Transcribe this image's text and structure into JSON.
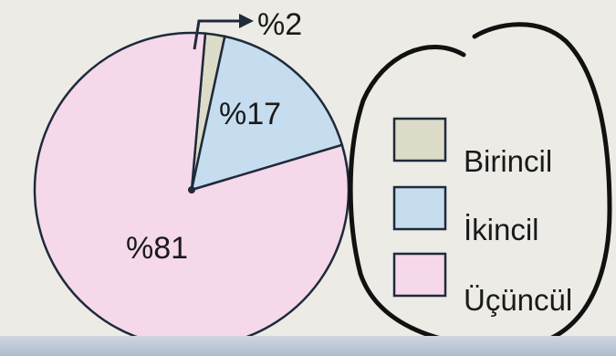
{
  "chart_data": {
    "type": "pie",
    "title": "",
    "slices": [
      {
        "label": "Birincil",
        "value": 2,
        "value_label": "%2",
        "color": "#dcdcc8"
      },
      {
        "label": "İkincil",
        "value": 17,
        "value_label": "%17",
        "color": "#c6dcef"
      },
      {
        "label": "Üçüncül",
        "value": 81,
        "value_label": "%81",
        "color": "#f5d8ea"
      }
    ],
    "legend": {
      "placement": "right",
      "entries": [
        "Birincil",
        "İkincil",
        "Üçüncül"
      ]
    }
  },
  "colors": {
    "outline": "#1f2a3a",
    "background": "#ecebe6",
    "marker_ink": "#111111"
  }
}
